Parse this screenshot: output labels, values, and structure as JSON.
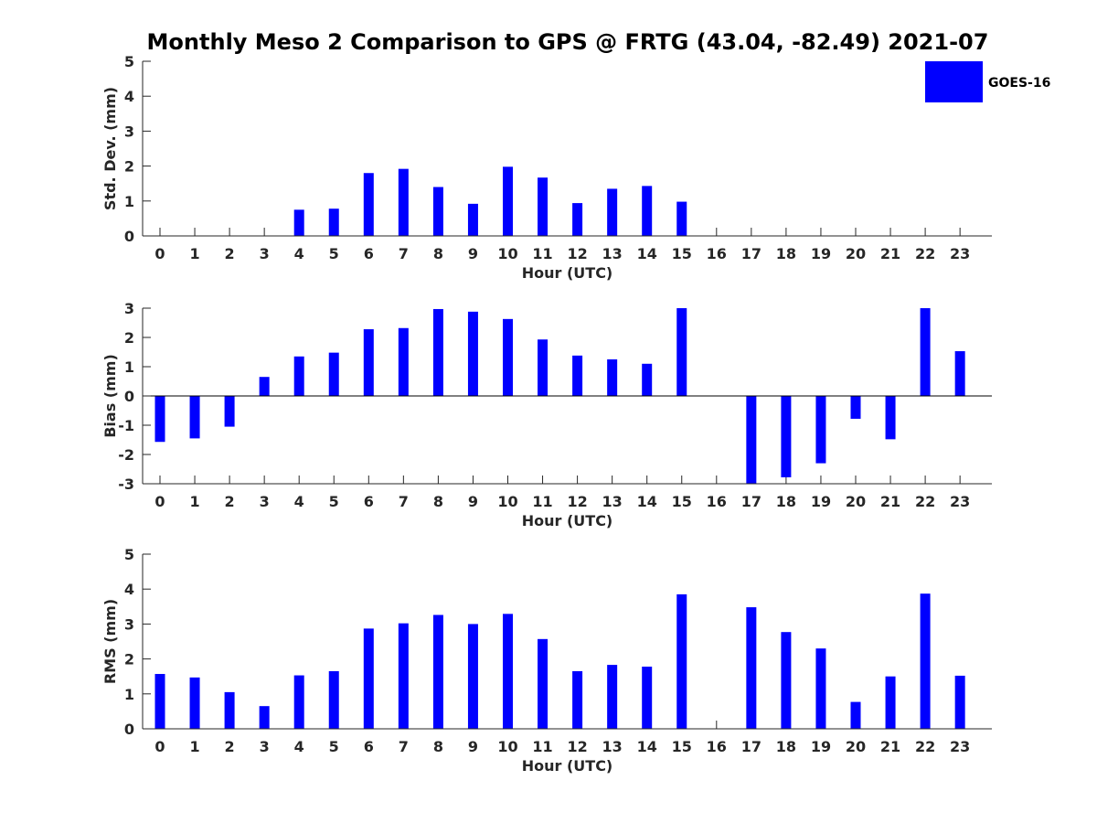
{
  "figure": {
    "title": "Monthly Meso 2 Comparison to GPS @ FRTG (43.04, -82.49) 2021-07"
  },
  "legend": {
    "label": "GOES-16",
    "color": "#0000ff",
    "placement": "top-right"
  },
  "chart_data": [
    {
      "type": "bar",
      "title": "",
      "xlabel": "Hour (UTC)",
      "ylabel": "Std. Dev. (mm)",
      "ylim": [
        0,
        5
      ],
      "yticks": [
        0,
        1,
        2,
        3,
        4,
        5
      ],
      "categories": [
        "0",
        "1",
        "2",
        "3",
        "4",
        "5",
        "6",
        "7",
        "8",
        "9",
        "10",
        "11",
        "12",
        "13",
        "14",
        "15",
        "16",
        "17",
        "18",
        "19",
        "20",
        "21",
        "22",
        "23"
      ],
      "series": [
        {
          "name": "GOES-16",
          "color": "#0000ff",
          "values": [
            null,
            null,
            null,
            null,
            0.75,
            0.78,
            1.8,
            1.92,
            1.4,
            0.92,
            1.98,
            1.67,
            0.94,
            1.35,
            1.43,
            0.98,
            null,
            null,
            null,
            null,
            null,
            null,
            null,
            null
          ]
        }
      ]
    },
    {
      "type": "bar",
      "title": "",
      "xlabel": "Hour (UTC)",
      "ylabel": "Bias (mm)",
      "ylim": [
        -3,
        3
      ],
      "yticks": [
        -3,
        -2,
        -1,
        0,
        1,
        2,
        3
      ],
      "categories": [
        "0",
        "1",
        "2",
        "3",
        "4",
        "5",
        "6",
        "7",
        "8",
        "9",
        "10",
        "11",
        "12",
        "13",
        "14",
        "15",
        "16",
        "17",
        "18",
        "19",
        "20",
        "21",
        "22",
        "23"
      ],
      "series": [
        {
          "name": "GOES-16",
          "color": "#0000ff",
          "values": [
            -1.57,
            -1.45,
            -1.05,
            0.65,
            1.35,
            1.48,
            2.28,
            2.32,
            2.97,
            2.88,
            2.63,
            1.93,
            1.38,
            1.25,
            1.1,
            3.0,
            null,
            -3.0,
            -2.78,
            -2.3,
            -0.78,
            -1.48,
            3.0,
            1.53
          ]
        }
      ]
    },
    {
      "type": "bar",
      "title": "",
      "xlabel": "Hour (UTC)",
      "ylabel": "RMS (mm)",
      "ylim": [
        0,
        5
      ],
      "yticks": [
        0,
        1,
        2,
        3,
        4,
        5
      ],
      "categories": [
        "0",
        "1",
        "2",
        "3",
        "4",
        "5",
        "6",
        "7",
        "8",
        "9",
        "10",
        "11",
        "12",
        "13",
        "14",
        "15",
        "16",
        "17",
        "18",
        "19",
        "20",
        "21",
        "22",
        "23"
      ],
      "series": [
        {
          "name": "GOES-16",
          "color": "#0000ff",
          "values": [
            1.57,
            1.47,
            1.05,
            0.65,
            1.53,
            1.65,
            2.87,
            3.02,
            3.26,
            3.0,
            3.29,
            2.57,
            1.65,
            1.83,
            1.78,
            3.85,
            null,
            3.48,
            2.77,
            2.3,
            0.77,
            1.5,
            3.87,
            1.52
          ]
        }
      ]
    }
  ]
}
